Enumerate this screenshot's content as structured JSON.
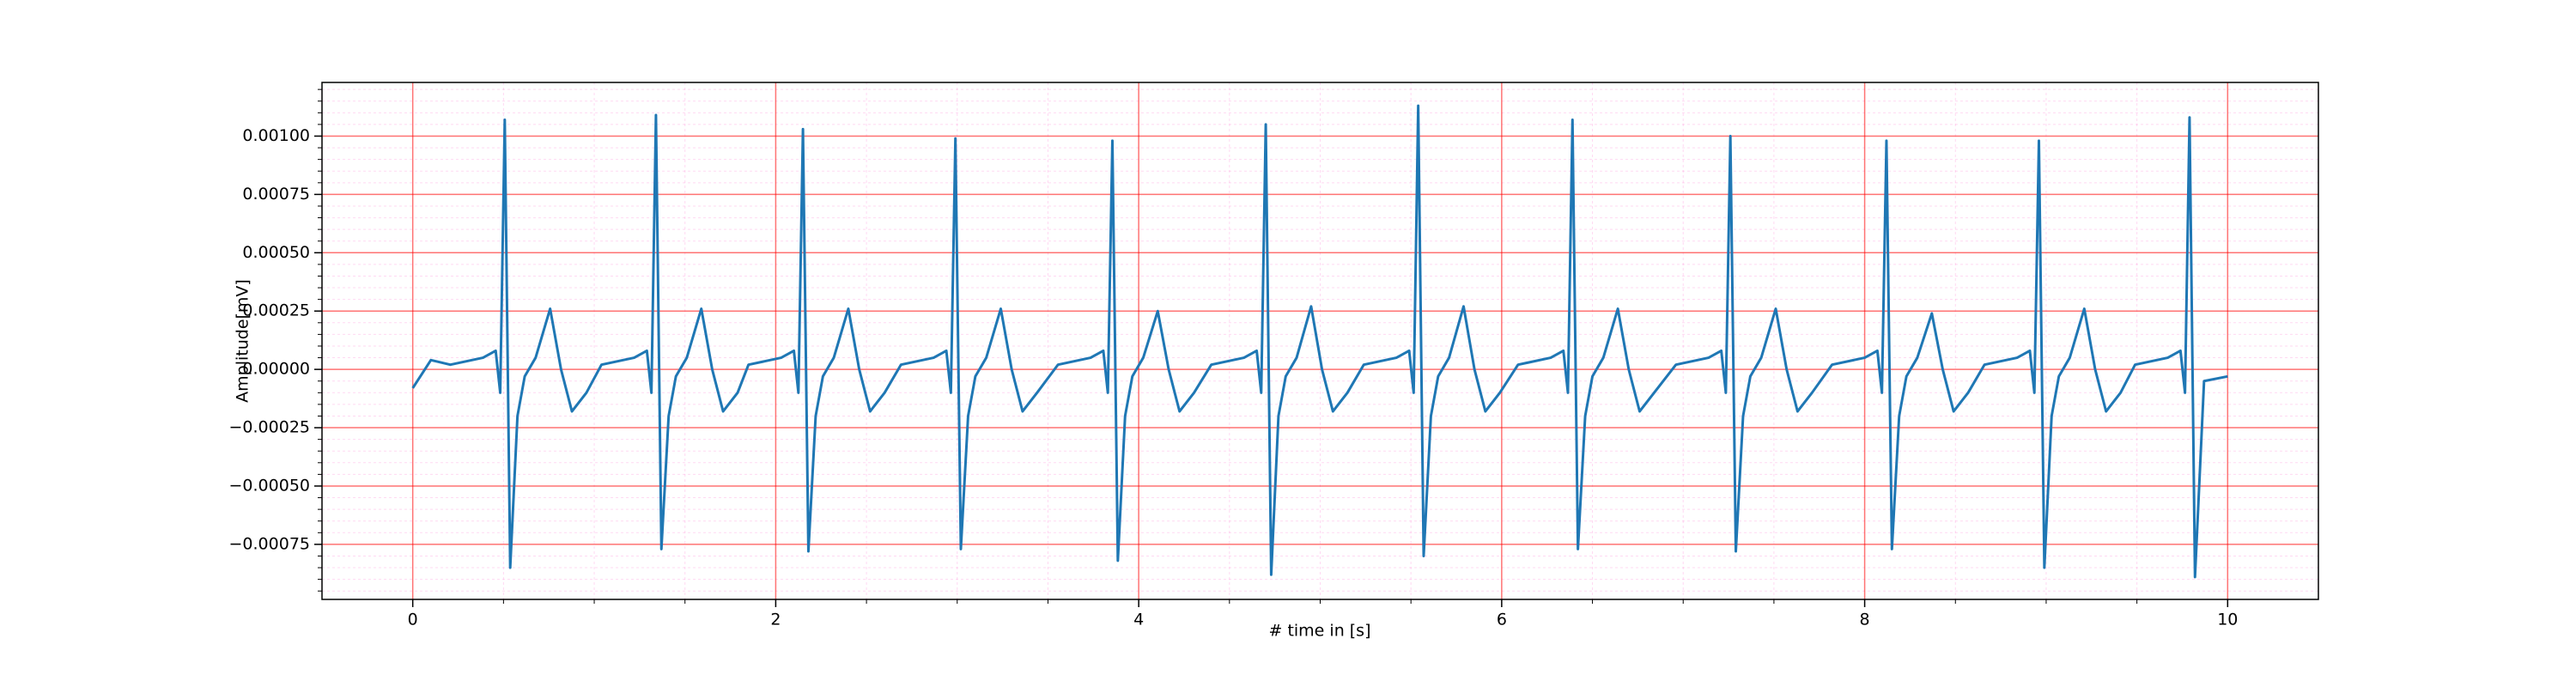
{
  "chart_data": {
    "type": "line",
    "xlabel": "# time in [s]",
    "ylabel": "Amplitude[mV]",
    "xlim": [
      -0.5,
      10.5
    ],
    "ylim": [
      -0.000986,
      0.00123
    ],
    "xticks": [
      0,
      2,
      4,
      6,
      8,
      10
    ],
    "yticks": [
      {
        "value": -0.00075,
        "label": "−0.00075"
      },
      {
        "value": -0.0005,
        "label": "−0.00050"
      },
      {
        "value": -0.00025,
        "label": "−0.00025"
      },
      {
        "value": 0,
        "label": "0.00000"
      },
      {
        "value": 0.00025,
        "label": "0.00025"
      },
      {
        "value": 0.0005,
        "label": "0.00050"
      },
      {
        "value": 0.00075,
        "label": "0.00075"
      },
      {
        "value": 0.001,
        "label": "0.00100"
      }
    ],
    "xminorticks": [
      0.5,
      1,
      1.5,
      2.5,
      3,
      3.5,
      4.5,
      5,
      5.5,
      6.5,
      7,
      7.5,
      8.5,
      9,
      9.5
    ],
    "yminorticks": [
      -0.00095,
      -0.0009,
      -0.00085,
      -0.0008,
      -0.0007,
      -0.00065,
      -0.0006,
      -0.00055,
      -0.00045,
      -0.0004,
      -0.00035,
      -0.0003,
      -0.0002,
      -0.00015,
      -0.0001,
      -5e-05,
      5e-05,
      0.0001,
      0.00015,
      0.0002,
      0.0003,
      0.00035,
      0.0004,
      0.00045,
      0.00055,
      0.0006,
      0.00065,
      0.0007,
      0.0008,
      0.00085,
      0.0009,
      0.00095,
      0.00105,
      0.0011,
      0.00115,
      0.0012
    ],
    "grid": true,
    "x": [
      0,
      0.1,
      0.207,
      0.387,
      0.457,
      0.482,
      0.507,
      0.537,
      0.577,
      0.617,
      0.677,
      0.757,
      0.817,
      0.877,
      0.957,
      1.04,
      1.22,
      1.29,
      1.315,
      1.34,
      1.37,
      1.41,
      1.45,
      1.51,
      1.59,
      1.65,
      1.71,
      1.79,
      1.85,
      2.03,
      2.1,
      2.125,
      2.15,
      2.18,
      2.22,
      2.26,
      2.32,
      2.4,
      2.46,
      2.52,
      2.6,
      2.69,
      2.87,
      2.94,
      2.965,
      2.99,
      3.02,
      3.06,
      3.1,
      3.16,
      3.24,
      3.3,
      3.36,
      3.44,
      3.555,
      3.735,
      3.805,
      3.83,
      3.855,
      3.885,
      3.925,
      3.965,
      4.025,
      4.105,
      4.165,
      4.225,
      4.305,
      4.4,
      4.58,
      4.65,
      4.675,
      4.7,
      4.73,
      4.77,
      4.81,
      4.87,
      4.95,
      5.01,
      5.07,
      5.15,
      5.24,
      5.42,
      5.49,
      5.515,
      5.54,
      5.57,
      5.61,
      5.65,
      5.71,
      5.79,
      5.85,
      5.91,
      5.99,
      6.09,
      6.27,
      6.34,
      6.365,
      6.39,
      6.42,
      6.46,
      6.5,
      6.56,
      6.64,
      6.7,
      6.76,
      6.84,
      6.96,
      7.14,
      7.21,
      7.235,
      7.26,
      7.29,
      7.33,
      7.37,
      7.43,
      7.51,
      7.57,
      7.63,
      7.71,
      7.82,
      8.0,
      8.07,
      8.095,
      8.12,
      8.15,
      8.19,
      8.23,
      8.29,
      8.37,
      8.43,
      8.49,
      8.57,
      8.66,
      8.84,
      8.91,
      8.935,
      8.96,
      8.99,
      9.03,
      9.07,
      9.13,
      9.21,
      9.27,
      9.33,
      9.41,
      9.49,
      9.67,
      9.74,
      9.765,
      9.79,
      9.82,
      9.87,
      10.0
    ],
    "series": [
      {
        "color": "#1f77b4",
        "values": [
          -8e-05,
          4e-05,
          2e-05,
          5e-05,
          8e-05,
          -0.0001,
          0.00107,
          -0.00085,
          -0.0002,
          -3e-05,
          5e-05,
          0.00026,
          0.0,
          -0.00018,
          -0.0001,
          2e-05,
          5e-05,
          8e-05,
          -0.0001,
          0.00109,
          -0.00077,
          -0.0002,
          -3e-05,
          5e-05,
          0.00026,
          0.0,
          -0.00018,
          -0.0001,
          2e-05,
          5e-05,
          8e-05,
          -0.0001,
          0.00103,
          -0.00078,
          -0.0002,
          -3e-05,
          5e-05,
          0.00026,
          0.0,
          -0.00018,
          -0.0001,
          2e-05,
          5e-05,
          8e-05,
          -0.0001,
          0.00099,
          -0.00077,
          -0.0002,
          -3e-05,
          5e-05,
          0.00026,
          0.0,
          -0.00018,
          -0.0001,
          2e-05,
          5e-05,
          8e-05,
          -0.0001,
          0.00098,
          -0.00082,
          -0.0002,
          -3e-05,
          5e-05,
          0.00025,
          0.0,
          -0.00018,
          -0.0001,
          2e-05,
          5e-05,
          8e-05,
          -0.0001,
          0.00105,
          -0.00088,
          -0.0002,
          -3e-05,
          5e-05,
          0.00027,
          0.0,
          -0.00018,
          -0.0001,
          2e-05,
          5e-05,
          8e-05,
          -0.0001,
          0.00113,
          -0.0008,
          -0.0002,
          -3e-05,
          5e-05,
          0.00027,
          0.0,
          -0.00018,
          -0.0001,
          2e-05,
          5e-05,
          8e-05,
          -0.0001,
          0.00107,
          -0.00077,
          -0.0002,
          -3e-05,
          5e-05,
          0.00026,
          0.0,
          -0.00018,
          -0.0001,
          2e-05,
          5e-05,
          8e-05,
          -0.0001,
          0.001,
          -0.00078,
          -0.0002,
          -3e-05,
          5e-05,
          0.00026,
          0.0,
          -0.00018,
          -0.0001,
          2e-05,
          5e-05,
          8e-05,
          -0.0001,
          0.00098,
          -0.00077,
          -0.0002,
          -3e-05,
          5e-05,
          0.00024,
          0.0,
          -0.00018,
          -0.0001,
          2e-05,
          5e-05,
          8e-05,
          -0.0001,
          0.00098,
          -0.00085,
          -0.0002,
          -3e-05,
          5e-05,
          0.00026,
          0.0,
          -0.00018,
          -0.0001,
          2e-05,
          5e-05,
          8e-05,
          -0.0001,
          0.00108,
          -0.00089,
          -5e-05,
          -3e-05
        ]
      }
    ]
  }
}
